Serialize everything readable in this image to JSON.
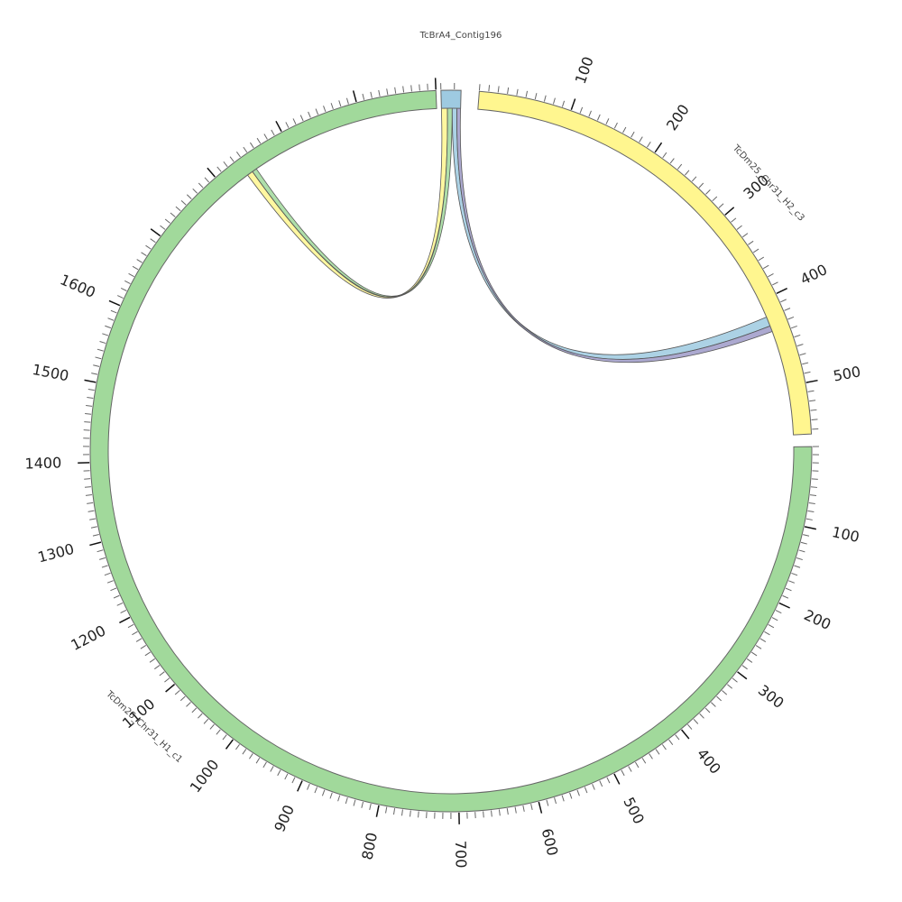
{
  "segments": [
    {
      "id": "contig196",
      "name": "TcBrA4_Contig196",
      "length": 15,
      "color": "#9ecae1",
      "ticks": []
    },
    {
      "id": "h2c3",
      "name": "TcDm25_Chr31_H2_c3",
      "length": 555,
      "color": "#fff68f",
      "ticks": [
        "100",
        "200",
        "300",
        "400",
        "500"
      ]
    },
    {
      "id": "h1c1",
      "name": "TcDm25_Chr31_H1_c1",
      "length": 2100,
      "color": "#a1d99b",
      "ticks": [
        "100",
        "200",
        "300",
        "400",
        "500",
        "600",
        "700",
        "800",
        "900",
        "1000",
        "1100",
        "1200",
        "1300",
        "1400",
        "1500",
        "1600"
      ]
    }
  ],
  "links": [
    {
      "name": "link-contig-to-h1c1",
      "colors": [
        "#fff68f",
        "#a1d99b"
      ]
    },
    {
      "name": "link-contig-to-h2c3",
      "colors": [
        "#9ecae1",
        "#9e9ac8"
      ]
    }
  ]
}
